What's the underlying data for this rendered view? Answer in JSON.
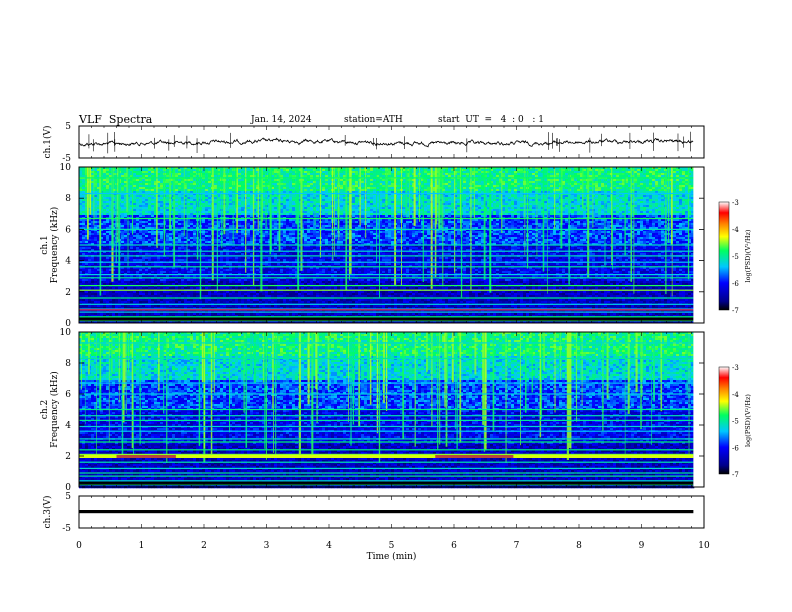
{
  "header": {
    "title": "VLF  Spectra",
    "date": "Jan. 14, 2024",
    "station": "station=ATH",
    "start": "start  UT  =   4  : 0   : 1"
  },
  "chart_data": [
    {
      "type": "line",
      "ylabel": "ch.1(V)",
      "ylim": [
        -5,
        5
      ],
      "yticks": [
        "5",
        "-5"
      ],
      "xlim": [
        0,
        10
      ],
      "description_values": "waveform near 0 V"
    },
    {
      "type": "heatmap",
      "ylabel_line1": "ch.1",
      "ylabel_line2": "Frequency  (kHz)",
      "ylim": [
        0,
        10
      ],
      "yticks": [
        "0",
        "2",
        "4",
        "6",
        "8",
        "10"
      ],
      "xlim": [
        0,
        10
      ],
      "colorbar": {
        "label": "log(PSD)(V²/Hz)",
        "range": [
          -7,
          -3
        ],
        "ticks": [
          "-3",
          "-4",
          "-5",
          "-6",
          "-7"
        ]
      }
    },
    {
      "type": "heatmap",
      "ylabel_line1": "ch.2",
      "ylabel_line2": "Frequency  (kHz)",
      "ylim": [
        0,
        10
      ],
      "yticks": [
        "0",
        "2",
        "4",
        "6",
        "8",
        "10"
      ],
      "xlim": [
        0,
        10
      ],
      "colorbar": {
        "label": "log(PSD)(V²/Hz)",
        "range": [
          -7,
          -3
        ],
        "ticks": [
          "-3",
          "-4",
          "-5",
          "-6",
          "-7"
        ]
      }
    },
    {
      "type": "line",
      "ylabel": "ch.3(V)",
      "ylim": [
        -5,
        5
      ],
      "yticks": [
        "5",
        "-5"
      ],
      "xlim": [
        0,
        10
      ],
      "xlabel": "Time  (min)",
      "xticks": [
        "0",
        "1",
        "2",
        "3",
        "4",
        "5",
        "6",
        "7",
        "8",
        "9",
        "10"
      ]
    }
  ]
}
